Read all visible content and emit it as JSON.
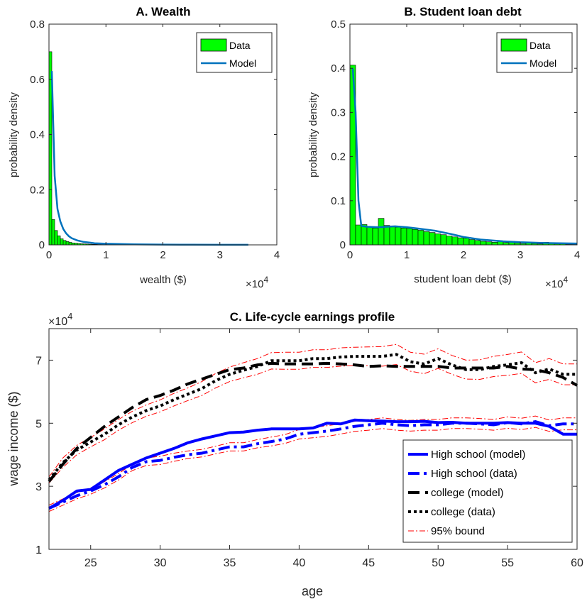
{
  "chart_data": [
    {
      "id": "A",
      "type": "bar",
      "title": "A. Wealth",
      "xlabel": "wealth ($)",
      "ylabel": "probability density",
      "x_exponent": "×10",
      "x_exponent_power": "4",
      "xlim": [
        0,
        4
      ],
      "ylim": [
        0,
        0.8
      ],
      "xticks": [
        0,
        1,
        2,
        3,
        4
      ],
      "xtick_labels": [
        "0",
        "1",
        "2",
        "3",
        "4"
      ],
      "yticks": [
        0,
        0.2,
        0.4,
        0.6,
        0.8
      ],
      "ytick_labels": [
        "0",
        "0.2",
        "0.4",
        "0.6",
        "0.8"
      ],
      "legend": [
        "Data",
        "Model"
      ],
      "legend_position": "top-right",
      "bin_width": 0.05,
      "data_bins": [
        0.7,
        0.092,
        0.052,
        0.033,
        0.022,
        0.016,
        0.012,
        0.009,
        0.007,
        0.006,
        0.005,
        0.004,
        0.0035,
        0.003,
        0.0025,
        0.002,
        0.002,
        0.0015,
        0.0015,
        0.001
      ],
      "model_x": [
        0.05,
        0.1,
        0.15,
        0.2,
        0.25,
        0.3,
        0.35,
        0.4,
        0.5,
        0.6,
        0.8,
        1.0,
        1.5,
        2.0,
        2.5,
        3.0,
        3.5
      ],
      "model_y": [
        0.63,
        0.25,
        0.13,
        0.085,
        0.058,
        0.042,
        0.031,
        0.024,
        0.016,
        0.011,
        0.006,
        0.004,
        0.002,
        0.001,
        0.0005,
        0.0003,
        0.0002
      ]
    },
    {
      "id": "B",
      "type": "bar",
      "title": "B. Student loan debt",
      "xlabel": "student loan debt ($)",
      "ylabel": "probability density",
      "x_exponent": "×10",
      "x_exponent_power": "4",
      "xlim": [
        0,
        4
      ],
      "ylim": [
        0,
        0.5
      ],
      "xticks": [
        0,
        1,
        2,
        3,
        4
      ],
      "xtick_labels": [
        "0",
        "1",
        "2",
        "3",
        "4"
      ],
      "yticks": [
        0,
        0.1,
        0.2,
        0.3,
        0.4,
        0.5
      ],
      "ytick_labels": [
        "0",
        "0.1",
        "0.2",
        "0.3",
        "0.4",
        "0.5"
      ],
      "legend": [
        "Data",
        "Model"
      ],
      "legend_position": "top-right",
      "bin_width": 0.1,
      "data_bins": [
        0.407,
        0.045,
        0.046,
        0.04,
        0.038,
        0.06,
        0.044,
        0.043,
        0.04,
        0.038,
        0.037,
        0.035,
        0.033,
        0.03,
        0.028,
        0.025,
        0.023,
        0.02,
        0.018,
        0.016,
        0.015,
        0.012,
        0.01,
        0.008,
        0.007,
        0.006,
        0.009,
        0.005,
        0.008,
        0.004,
        0.003,
        0.005,
        0.003,
        0.002,
        0.006,
        0.005,
        0.002,
        0.004,
        0.001,
        0.001
      ],
      "model_x": [
        0.05,
        0.1,
        0.15,
        0.2,
        0.3,
        0.5,
        0.8,
        1.0,
        1.2,
        1.5,
        1.8,
        2.0,
        2.3,
        2.7,
        3.0,
        3.5,
        4.0
      ],
      "model_y": [
        0.4,
        0.3,
        0.1,
        0.043,
        0.041,
        0.04,
        0.042,
        0.04,
        0.037,
        0.032,
        0.024,
        0.018,
        0.012,
        0.008,
        0.006,
        0.004,
        0.003
      ]
    },
    {
      "id": "C",
      "type": "line",
      "title": "C. Life-cycle earnings profile",
      "xlabel": "age",
      "ylabel": "wage income ($)",
      "y_exponent": "×10",
      "y_exponent_power": "4",
      "xlim": [
        22,
        60
      ],
      "ylim": [
        1,
        8
      ],
      "xticks": [
        25,
        30,
        35,
        40,
        45,
        50,
        55,
        60
      ],
      "xtick_labels": [
        "25",
        "30",
        "35",
        "40",
        "45",
        "50",
        "55",
        "60"
      ],
      "yticks": [
        1,
        3,
        5,
        7
      ],
      "ytick_labels": [
        "1",
        "3",
        "5",
        "7"
      ],
      "legend_position": "bottom-right",
      "ages": [
        22,
        23,
        24,
        25,
        26,
        27,
        28,
        29,
        30,
        31,
        32,
        33,
        34,
        35,
        36,
        37,
        38,
        39,
        40,
        41,
        42,
        43,
        44,
        45,
        46,
        47,
        48,
        49,
        50,
        51,
        52,
        53,
        54,
        55,
        56,
        57,
        58,
        59,
        60
      ],
      "series": [
        {
          "name": "High school (model)",
          "style": "solid",
          "color": "#0000ff",
          "values": [
            2.3,
            2.55,
            2.85,
            2.9,
            3.2,
            3.5,
            3.7,
            3.9,
            4.05,
            4.2,
            4.38,
            4.5,
            4.6,
            4.7,
            4.72,
            4.78,
            4.82,
            4.82,
            4.82,
            4.85,
            5.0,
            4.98,
            5.1,
            5.08,
            5.07,
            5.05,
            5.05,
            5.06,
            5.02,
            5.03,
            5.0,
            5.0,
            5.0,
            5.02,
            5.0,
            5.0,
            4.9,
            4.65,
            4.65
          ]
        },
        {
          "name": "High school (data)",
          "style": "dashdot",
          "color": "#0000ff",
          "values": [
            2.3,
            2.5,
            2.7,
            2.85,
            3.05,
            3.3,
            3.6,
            3.78,
            3.82,
            3.92,
            4.0,
            4.05,
            4.15,
            4.25,
            4.25,
            4.35,
            4.42,
            4.5,
            4.65,
            4.7,
            4.75,
            4.82,
            4.9,
            4.95,
            5.0,
            4.95,
            4.92,
            4.95,
            4.95,
            5.0,
            5.0,
            4.98,
            4.95,
            5.02,
            4.98,
            5.05,
            4.92,
            4.98,
            4.98
          ]
        },
        {
          "name": "college (model)",
          "style": "dashed",
          "color": "#000000",
          "values": [
            3.15,
            3.7,
            4.2,
            4.55,
            4.9,
            5.2,
            5.5,
            5.75,
            5.88,
            6.05,
            6.25,
            6.4,
            6.55,
            6.7,
            6.75,
            6.85,
            6.9,
            6.88,
            6.88,
            6.88,
            6.9,
            6.88,
            6.85,
            6.8,
            6.82,
            6.8,
            6.8,
            6.8,
            6.8,
            6.75,
            6.75,
            6.75,
            6.75,
            6.8,
            6.72,
            6.7,
            6.6,
            6.45,
            6.2
          ]
        },
        {
          "name": "college (data)",
          "style": "dotted",
          "color": "#000000",
          "values": [
            3.2,
            3.75,
            4.15,
            4.4,
            4.65,
            4.95,
            5.2,
            5.4,
            5.55,
            5.75,
            5.92,
            6.1,
            6.35,
            6.55,
            6.68,
            6.8,
            6.98,
            6.98,
            6.98,
            7.05,
            7.05,
            7.1,
            7.12,
            7.12,
            7.12,
            7.18,
            6.95,
            6.88,
            7.05,
            6.85,
            6.7,
            6.7,
            6.8,
            6.85,
            6.92,
            6.6,
            6.72,
            6.55,
            6.55
          ]
        },
        {
          "name": "95% bound",
          "style": "thin-dashdot",
          "color": "#ff0000",
          "legend_only_once": true,
          "bands": [
            {
              "label": "hs_upper",
              "values": [
                2.4,
                2.6,
                2.8,
                2.95,
                3.15,
                3.4,
                3.7,
                3.9,
                3.95,
                4.05,
                4.12,
                4.17,
                4.27,
                4.38,
                4.38,
                4.48,
                4.56,
                4.64,
                4.8,
                4.86,
                4.92,
                4.98,
                5.06,
                5.12,
                5.17,
                5.12,
                5.09,
                5.12,
                5.12,
                5.17,
                5.17,
                5.15,
                5.12,
                5.2,
                5.16,
                5.23,
                5.1,
                5.17,
                5.17
              ]
            },
            {
              "label": "hs_lower",
              "values": [
                2.2,
                2.4,
                2.6,
                2.75,
                2.95,
                3.2,
                3.5,
                3.66,
                3.69,
                3.79,
                3.88,
                3.93,
                4.03,
                4.12,
                4.12,
                4.22,
                4.28,
                4.36,
                4.5,
                4.54,
                4.58,
                4.66,
                4.74,
                4.78,
                4.83,
                4.78,
                4.75,
                4.78,
                4.78,
                4.83,
                4.83,
                4.81,
                4.78,
                4.84,
                4.8,
                4.87,
                4.74,
                4.79,
                4.79
              ]
            },
            {
              "label": "col_upper",
              "values": [
                3.3,
                3.9,
                4.3,
                4.55,
                4.82,
                5.12,
                5.38,
                5.58,
                5.74,
                5.95,
                6.12,
                6.32,
                6.58,
                6.78,
                6.92,
                7.05,
                7.24,
                7.25,
                7.25,
                7.33,
                7.33,
                7.39,
                7.41,
                7.42,
                7.43,
                7.5,
                7.25,
                7.19,
                7.36,
                7.15,
                7.0,
                7.01,
                7.12,
                7.18,
                7.26,
                6.92,
                7.05,
                6.88,
                6.88
              ]
            },
            {
              "label": "col_lower",
              "values": [
                3.1,
                3.6,
                4.0,
                4.25,
                4.48,
                4.78,
                5.02,
                5.22,
                5.36,
                5.55,
                5.72,
                5.88,
                6.12,
                6.32,
                6.44,
                6.55,
                6.72,
                6.71,
                6.71,
                6.77,
                6.77,
                6.81,
                6.83,
                6.82,
                6.81,
                6.86,
                6.65,
                6.57,
                6.74,
                6.55,
                6.4,
                6.39,
                6.48,
                6.52,
                6.58,
                6.28,
                6.39,
                6.22,
                6.22
              ]
            }
          ]
        }
      ]
    }
  ]
}
